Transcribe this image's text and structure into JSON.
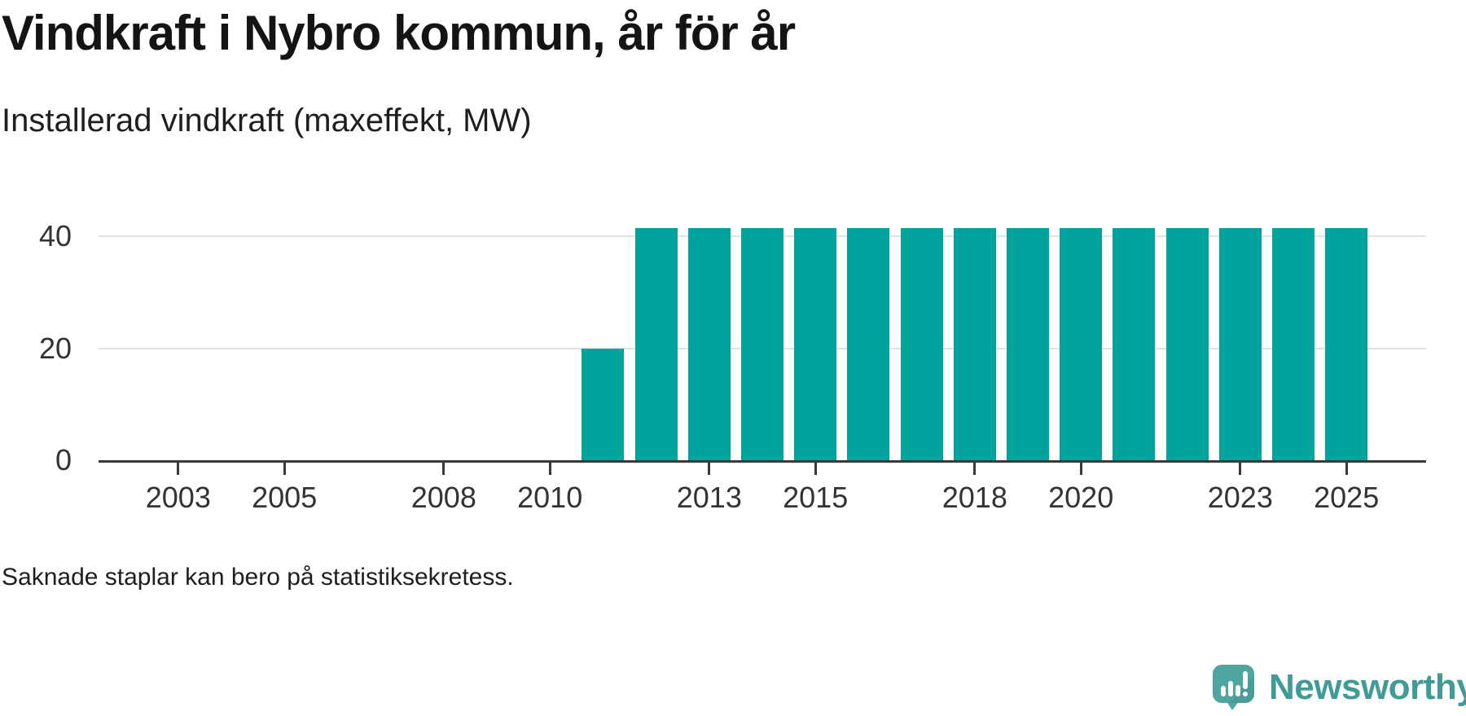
{
  "title": "Vindkraft i Nybro kommun, år för år",
  "subtitle": "Installerad vindkraft (maxeffekt, MW)",
  "footnote": "Saknade staplar kan bero på statistiksekretess.",
  "branding": {
    "name": "Newsworthy",
    "icon": "newsworthy-speech-bubble-bar-chart-icon",
    "icon_color": "#4fa5a0",
    "text_color": "#3f9b95"
  },
  "colors": {
    "bar": "#00a49d",
    "axis": "#3a3a3a",
    "gridline": "#e3e3e3",
    "tick_text": "#333333"
  },
  "chart_data": {
    "type": "bar",
    "title": "Vindkraft i Nybro kommun, år för år",
    "subtitle": "Installerad vindkraft (maxeffekt, MW)",
    "unit": "MW",
    "xlabel": "",
    "ylabel": "Installerad vindkraft (maxeffekt, MW)",
    "x_domain": [
      2002,
      2026
    ],
    "ylim": [
      0,
      42.5
    ],
    "y_ticks": [
      0,
      20,
      40
    ],
    "x_tick_labels": [
      "2003",
      "2005",
      "2008",
      "2010",
      "2013",
      "2015",
      "2018",
      "2020",
      "2023",
      "2025"
    ],
    "grid": "horizontal",
    "legend": "none",
    "note": "2002–2010 have no bars (missing values)",
    "bars": [
      {
        "year": 2011,
        "value": 20
      },
      {
        "year": 2012,
        "value": 41.5
      },
      {
        "year": 2013,
        "value": 41.5
      },
      {
        "year": 2014,
        "value": 41.5
      },
      {
        "year": 2015,
        "value": 41.5
      },
      {
        "year": 2016,
        "value": 41.5
      },
      {
        "year": 2017,
        "value": 41.5
      },
      {
        "year": 2018,
        "value": 41.5
      },
      {
        "year": 2019,
        "value": 41.5
      },
      {
        "year": 2020,
        "value": 41.5
      },
      {
        "year": 2021,
        "value": 41.5
      },
      {
        "year": 2022,
        "value": 41.5
      },
      {
        "year": 2023,
        "value": 41.5
      },
      {
        "year": 2024,
        "value": 41.5
      },
      {
        "year": 2025,
        "value": 41.5
      }
    ]
  }
}
